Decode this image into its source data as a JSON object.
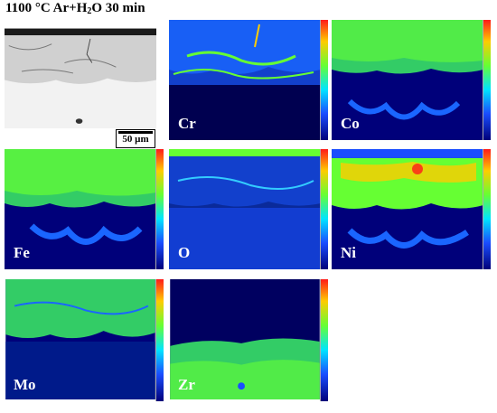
{
  "header": {
    "title_main": "1100 °C  Ar+H",
    "title_sub": "2",
    "title_rest": "O   30 min"
  },
  "scalebar": {
    "label": "50 µm"
  },
  "panels": [
    {
      "id": "sem",
      "label": ""
    },
    {
      "id": "cr",
      "label": "Cr"
    },
    {
      "id": "co",
      "label": "Co"
    },
    {
      "id": "fe",
      "label": "Fe"
    },
    {
      "id": "o",
      "label": "O"
    },
    {
      "id": "ni",
      "label": "Ni"
    },
    {
      "id": "mo",
      "label": "Mo"
    },
    {
      "id": "zr",
      "label": "Zr"
    }
  ],
  "colors": {
    "high": "#ff1a1a",
    "mid": "#66ff33",
    "low": "#1a4dff",
    "background": "#00007a"
  }
}
